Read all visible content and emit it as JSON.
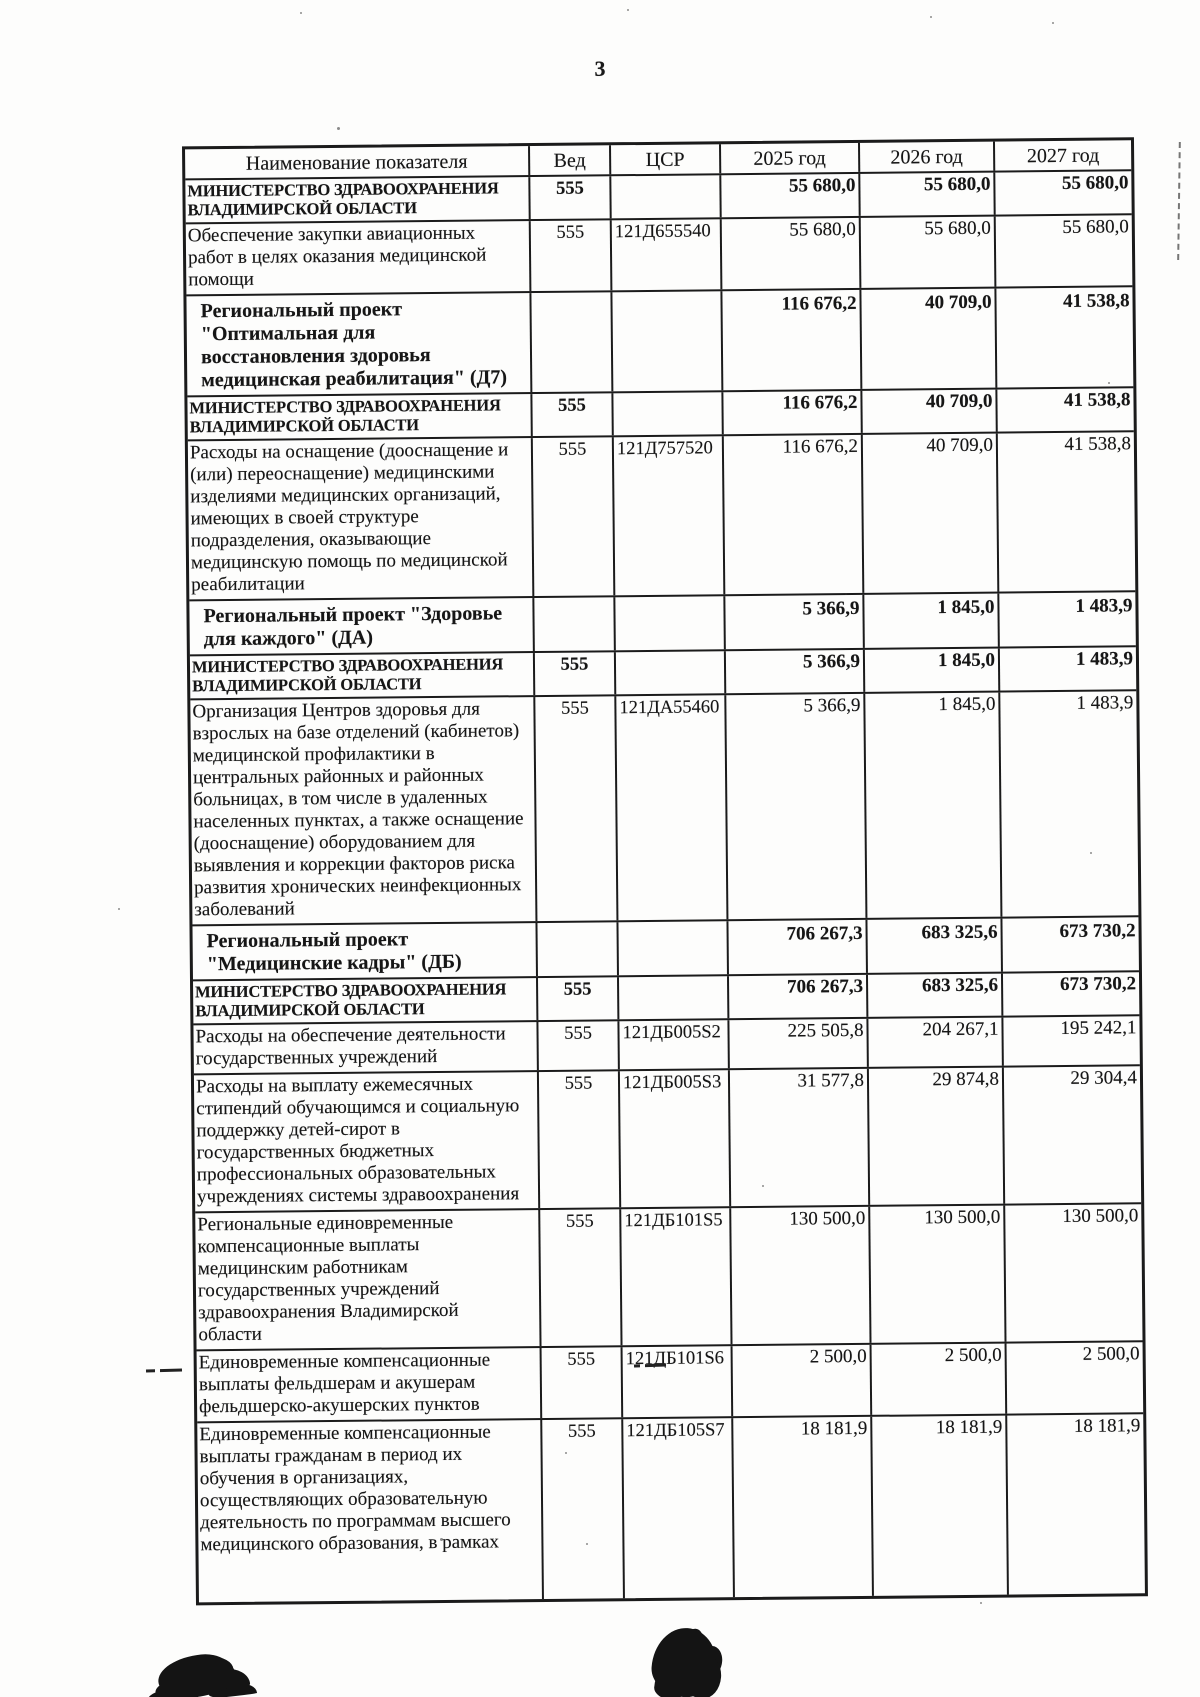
{
  "page": {
    "number": "3"
  },
  "table": {
    "headers": [
      "Наименование показателя",
      "Вед",
      "ЦСР",
      "2025 год",
      "2026 год",
      "2027 год"
    ],
    "rows": [
      {
        "type": "ministry",
        "name": "МИНИСТЕРСТВО ЗДРАВООХРАНЕНИЯ\nВЛАДИМИРСКОЙ ОБЛАСТИ",
        "ved": "555",
        "csr": "",
        "y2025": "55 680,0",
        "y2026": "55 680,0",
        "y2027": "55 680,0"
      },
      {
        "type": "expense",
        "name": "Обеспечение закупки авиационных\nработ в целях оказания медицинской\nпомощи",
        "ved": "555",
        "csr": "121Д655540",
        "y2025": "55 680,0",
        "y2026": "55 680,0",
        "y2027": "55 680,0"
      },
      {
        "type": "project",
        "name": "Региональный проект\n\"Оптимальная для\nвосстановления здоровья\nмедицинская реабилитация\" (Д7)",
        "ved": "",
        "csr": "",
        "y2025": "116 676,2",
        "y2026": "40 709,0",
        "y2027": "41 538,8"
      },
      {
        "type": "ministry",
        "name": "МИНИСТЕРСТВО ЗДРАВООХРАНЕНИЯ\nВЛАДИМИРСКОЙ ОБЛАСТИ",
        "ved": "555",
        "csr": "",
        "y2025": "116 676,2",
        "y2026": "40 709,0",
        "y2027": "41 538,8"
      },
      {
        "type": "expense",
        "name": "Расходы на оснащение (дооснащение и\n(или) переоснащение) медицинскими\nизделиями медицинских организаций,\nимеющих в своей структуре\nподразделения, оказывающие\nмедицинскую помощь по медицинской\nреабилитации",
        "ved": "555",
        "csr": "121Д757520",
        "y2025": "116 676,2",
        "y2026": "40 709,0",
        "y2027": "41 538,8"
      },
      {
        "type": "project",
        "name": "Региональный проект \"Здоровье\nдля каждого\" (ДА)",
        "ved": "",
        "csr": "",
        "y2025": "5 366,9",
        "y2026": "1 845,0",
        "y2027": "1 483,9"
      },
      {
        "type": "ministry",
        "name": "МИНИСТЕРСТВО ЗДРАВООХРАНЕНИЯ\nВЛАДИМИРСКОЙ ОБЛАСТИ",
        "ved": "555",
        "csr": "",
        "y2025": "5 366,9",
        "y2026": "1 845,0",
        "y2027": "1 483,9"
      },
      {
        "type": "expense",
        "name": "Организация Центров здоровья для\nвзрослых на базе отделений (кабинетов)\nмедицинской профилактики в\nцентральных районных и районных\nбольницах, в том числе в удаленных\nнаселенных пунктах, а также оснащение\n(дооснащение) оборудованием для\nвыявления и коррекции факторов риска\nразвития хронических неинфекционных\nзаболеваний",
        "ved": "555",
        "csr": "121ДА55460",
        "y2025": "5 366,9",
        "y2026": "1 845,0",
        "y2027": "1 483,9"
      },
      {
        "type": "project",
        "name": "Региональный проект\n\"Медицинские кадры\" (ДБ)",
        "ved": "",
        "csr": "",
        "y2025": "706 267,3",
        "y2026": "683 325,6",
        "y2027": "673 730,2"
      },
      {
        "type": "ministry",
        "name": "МИНИСТЕРСТВО ЗДРАВООХРАНЕНИЯ\nВЛАДИМИРСКОЙ ОБЛАСТИ",
        "ved": "555",
        "csr": "",
        "y2025": "706 267,3",
        "y2026": "683 325,6",
        "y2027": "673 730,2"
      },
      {
        "type": "expense",
        "name": "Расходы на обеспечение деятельности\nгосударственных учреждений",
        "ved": "555",
        "csr": "121ДБ005S2",
        "y2025": "225 505,8",
        "y2026": "204 267,1",
        "y2027": "195 242,1"
      },
      {
        "type": "expense",
        "name": "Расходы на выплату ежемесячных\nстипендий обучающимся и социальную\nподдержку детей-сирот в\nгосударственных бюджетных\nпрофессиональных образовательных\nучреждениях системы здравоохранения",
        "ved": "555",
        "csr": "121ДБ005S3",
        "y2025": "31 577,8",
        "y2026": "29 874,8",
        "y2027": "29 304,4"
      },
      {
        "type": "expense",
        "name": "Региональные единовременные\nкомпенсационные выплаты\nмедицинским работникам\nгосударственных учреждений\nздравоохранения Владимирской\nобласти",
        "ved": "555",
        "csr": "121ДБ101S5",
        "y2025": "130 500,0",
        "y2026": "130 500,0",
        "y2027": "130 500,0"
      },
      {
        "type": "expense",
        "name": "Единовременные компенсационные\nвыплаты фельдшерам и акушерам\nфельдшерско-акушерских пунктов",
        "ved": "555",
        "csr": "121ДБ101S6",
        "y2025": "2 500,0",
        "y2026": "2 500,0",
        "y2027": "2 500,0"
      },
      {
        "type": "expense",
        "name": "Единовременные компенсационные\nвыплаты гражданам в период их\nобучения в организациях,\nосуществляющих образовательную\nдеятельность по программам высшего\nмедицинского образования, в рамках",
        "ved": "555",
        "csr": "121ДБ105S7",
        "y2025": "18 181,9",
        "y2026": "18 181,9",
        "y2027": "18 181,9"
      }
    ]
  }
}
